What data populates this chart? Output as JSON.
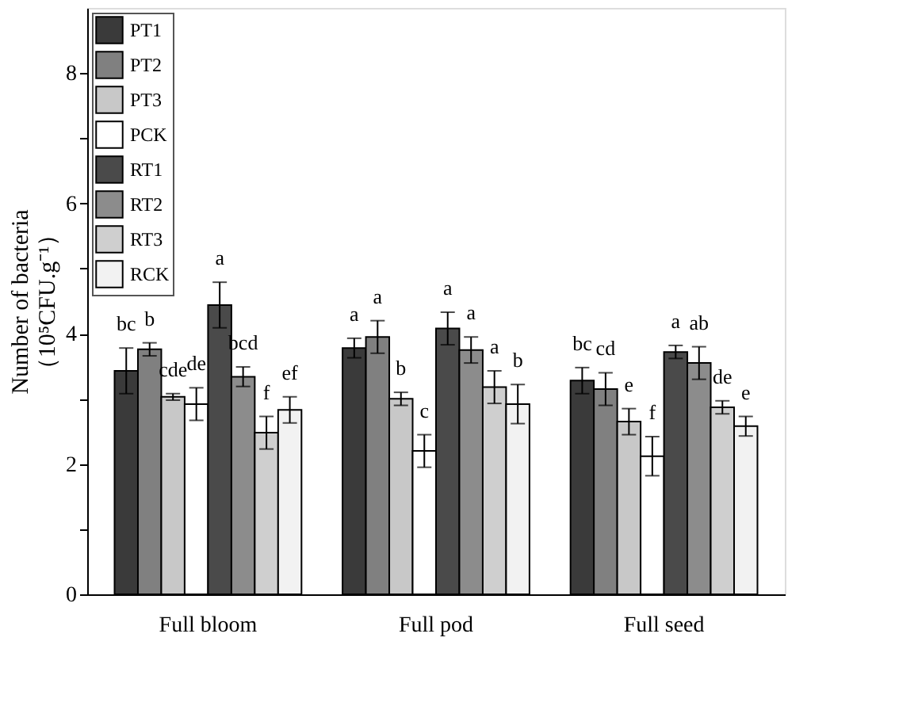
{
  "chart_data": {
    "type": "bar",
    "ylabel": "Number of bacteria\n（10⁵CFU.g⁻¹）",
    "categories": [
      "Full bloom",
      "Full pod",
      "Full seed"
    ],
    "ylim": [
      0,
      9
    ],
    "yticks": [
      0,
      {
        "value": 1,
        "label": null
      },
      2,
      {
        "value": 3,
        "label": null
      },
      4,
      {
        "value": 5,
        "label": null
      },
      6,
      {
        "value": 7,
        "label": null
      },
      8
    ],
    "grid": false,
    "legend": "top left",
    "series": [
      {
        "name": "PT1",
        "color": "#3a3a3a",
        "values": [
          3.43,
          3.78,
          3.28
        ],
        "errors": [
          0.35,
          0.15,
          0.2
        ],
        "value_labels": [
          "bc",
          "a",
          "bc"
        ]
      },
      {
        "name": "PT2",
        "color": "#808080",
        "values": [
          3.76,
          3.95,
          3.15
        ],
        "errors": [
          0.1,
          0.25,
          0.25
        ],
        "value_labels": [
          "b",
          "a",
          "cd"
        ]
      },
      {
        "name": "PT3",
        "color": "#c8c8c8",
        "values": [
          3.03,
          3.0,
          2.65
        ],
        "errors": [
          0.05,
          0.1,
          0.2
        ],
        "value_labels": [
          "cde",
          "b",
          "e"
        ]
      },
      {
        "name": "PCK",
        "color": "#ffffff",
        "values": [
          2.92,
          2.2,
          2.12
        ],
        "errors": [
          0.25,
          0.25,
          0.3
        ],
        "value_labels": [
          "de",
          "c",
          "f"
        ]
      },
      {
        "name": "RT1",
        "color": "#4a4a4a",
        "values": [
          4.44,
          4.08,
          3.72
        ],
        "errors": [
          0.35,
          0.25,
          0.1
        ],
        "value_labels": [
          "a",
          "a",
          "a"
        ]
      },
      {
        "name": "RT2",
        "color": "#8c8c8c",
        "values": [
          3.34,
          3.75,
          3.55
        ],
        "errors": [
          0.15,
          0.2,
          0.25
        ],
        "value_labels": [
          "bcd",
          "a",
          "ab"
        ]
      },
      {
        "name": "RT3",
        "color": "#cfcfcf",
        "values": [
          2.48,
          3.18,
          2.87
        ],
        "errors": [
          0.25,
          0.25,
          0.1
        ],
        "value_labels": [
          "f",
          "a",
          "de"
        ]
      },
      {
        "name": "RCK",
        "color": "#f2f2f2",
        "values": [
          2.83,
          2.92,
          2.58
        ],
        "errors": [
          0.2,
          0.3,
          0.15
        ],
        "value_labels": [
          "ef",
          "b",
          "e"
        ]
      }
    ]
  }
}
